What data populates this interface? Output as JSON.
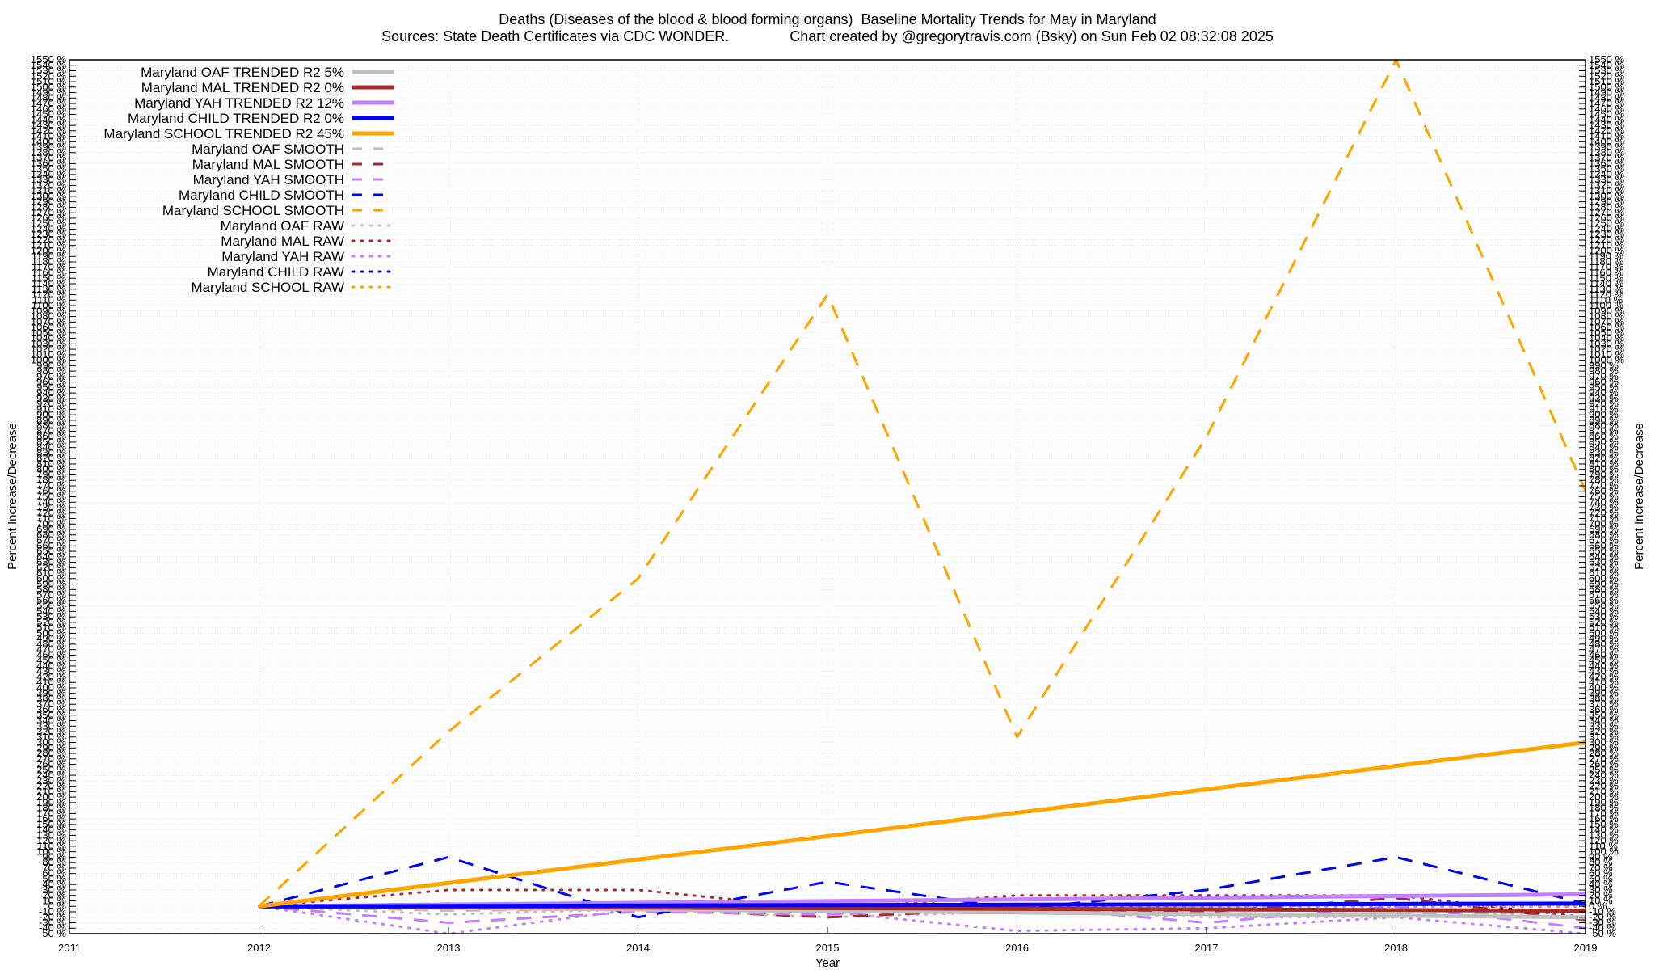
{
  "chart_data": {
    "type": "line",
    "title": "Deaths (Diseases of the blood & blood forming organs)  Baseline Mortality Trends for May in Maryland",
    "subtitle": "Sources: State Death Certificates via CDC WONDER.               Chart created by @gregorytravis.com (Bsky) on Sun Feb 02 08:32:08 2025",
    "xlabel": "Year",
    "ylabel": "Percent Increase/Decrease",
    "xlim": [
      2011,
      2019
    ],
    "ylim": [
      -50,
      1550
    ],
    "x_ticks": [
      2011,
      2012,
      2013,
      2014,
      2015,
      2016,
      2017,
      2018,
      2019
    ],
    "y_tick_step": 10,
    "y_tick_suffix": " %",
    "grid": true,
    "legend_position": "top-left",
    "series": [
      {
        "name": "Maryland OAF TRENDED R2  5%",
        "color": "#c0c0c0",
        "style": "solid",
        "width": 5,
        "x": [
          2012,
          2019
        ],
        "y": [
          0,
          -20
        ]
      },
      {
        "name": "Maryland MAL TRENDED R2  0%",
        "color": "#a52a2a",
        "style": "solid",
        "width": 5,
        "x": [
          2012,
          2019
        ],
        "y": [
          0,
          -8
        ]
      },
      {
        "name": "Maryland YAH TRENDED R2  12%",
        "color": "#c080ff",
        "style": "solid",
        "width": 5,
        "x": [
          2012,
          2019
        ],
        "y": [
          0,
          22
        ]
      },
      {
        "name": "Maryland CHILD TRENDED R2  0%",
        "color": "#0000ff",
        "style": "solid",
        "width": 5,
        "x": [
          2012,
          2019
        ],
        "y": [
          0,
          5
        ]
      },
      {
        "name": "Maryland SCHOOL TRENDED R2  45%",
        "color": "#ffa500",
        "style": "solid",
        "width": 5,
        "x": [
          2012,
          2019
        ],
        "y": [
          0,
          300
        ]
      },
      {
        "name": "Maryland OAF SMOOTH",
        "color": "#c0c0c0",
        "style": "dashed",
        "width": 3,
        "x": [
          2012,
          2013,
          2014,
          2015,
          2016,
          2017,
          2018,
          2019
        ],
        "y": [
          0,
          -8,
          -5,
          -10,
          -5,
          -12,
          -15,
          -10
        ]
      },
      {
        "name": "Maryland MAL SMOOTH",
        "color": "#a52a2a",
        "style": "dashed",
        "width": 3,
        "x": [
          2012,
          2013,
          2014,
          2015,
          2016,
          2017,
          2018,
          2019
        ],
        "y": [
          0,
          5,
          -5,
          -20,
          -5,
          -10,
          15,
          -25
        ]
      },
      {
        "name": "Maryland YAH SMOOTH",
        "color": "#c080ff",
        "style": "dashed",
        "width": 3,
        "x": [
          2012,
          2013,
          2014,
          2015,
          2016,
          2017,
          2018,
          2019
        ],
        "y": [
          0,
          -30,
          -10,
          -15,
          0,
          -30,
          0,
          -40
        ]
      },
      {
        "name": "Maryland CHILD SMOOTH",
        "color": "#0000ff",
        "style": "dashed",
        "width": 3,
        "x": [
          2012,
          2013,
          2014,
          2015,
          2016,
          2017,
          2018,
          2019
        ],
        "y": [
          0,
          90,
          -20,
          45,
          -5,
          30,
          90,
          5
        ]
      },
      {
        "name": "Maryland SCHOOL SMOOTH",
        "color": "#ffa500",
        "style": "dashed",
        "width": 3,
        "x": [
          2012,
          2013,
          2014,
          2015,
          2016,
          2017,
          2018,
          2019
        ],
        "y": [
          0,
          320,
          600,
          1120,
          310,
          860,
          1550,
          760
        ]
      },
      {
        "name": "Maryland OAF RAW",
        "color": "#c0c0c0",
        "style": "dotted",
        "width": 3,
        "x": [
          2012,
          2013,
          2014,
          2015,
          2016,
          2017,
          2018,
          2019
        ],
        "y": [
          0,
          -15,
          -5,
          -20,
          -10,
          -20,
          -20,
          -10
        ]
      },
      {
        "name": "Maryland MAL RAW",
        "color": "#a52a2a",
        "style": "dotted",
        "width": 3,
        "x": [
          2012,
          2013,
          2014,
          2015,
          2016,
          2017,
          2018,
          2019
        ],
        "y": [
          0,
          30,
          30,
          -5,
          20,
          20,
          20,
          -20
        ]
      },
      {
        "name": "Maryland YAH RAW",
        "color": "#c080ff",
        "style": "dotted",
        "width": 3,
        "x": [
          2012,
          2013,
          2014,
          2015,
          2016,
          2017,
          2018,
          2019
        ],
        "y": [
          0,
          -50,
          -5,
          -10,
          -45,
          -40,
          -20,
          -50
        ]
      },
      {
        "name": "Maryland CHILD RAW",
        "color": "#0000ff",
        "style": "dotted",
        "width": 3,
        "x": [
          2012,
          2013,
          2014,
          2015,
          2016,
          2017,
          2018,
          2019
        ],
        "y": [
          0,
          0,
          0,
          0,
          0,
          0,
          0,
          0
        ]
      },
      {
        "name": "Maryland SCHOOL RAW",
        "color": "#ffa500",
        "style": "dotted",
        "width": 3,
        "x": [
          2012,
          2013,
          2014,
          2015,
          2016,
          2017,
          2018,
          2019
        ],
        "y": [
          0,
          0,
          0,
          0,
          0,
          0,
          0,
          0
        ]
      }
    ]
  }
}
